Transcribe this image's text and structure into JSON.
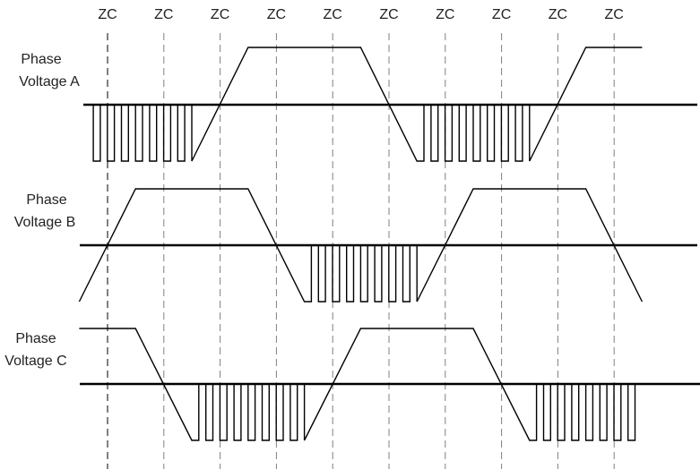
{
  "zc_label": "ZC",
  "zc_count": 10,
  "phases": [
    {
      "id": "a",
      "label_line1": "Phase",
      "label_line2": "Voltage A",
      "sequence": [
        "pwm",
        "rise",
        "high",
        "high",
        "fall",
        "pwm",
        "rise",
        "high"
      ],
      "sequence_spans": [
        2,
        1,
        1,
        1,
        1,
        2,
        1,
        1
      ]
    },
    {
      "id": "b",
      "label_line1": "Phase",
      "label_line2": "Voltage B",
      "sequence": [
        "rise",
        "high",
        "fall",
        "pwm",
        "rise",
        "high",
        "fall"
      ],
      "sequence_spans": [
        1,
        2,
        1,
        2,
        1,
        2,
        1
      ]
    },
    {
      "id": "c",
      "label_line1": "Phase",
      "label_line2": "Voltage C",
      "sequence": [
        "high",
        "fall",
        "pwm",
        "rise",
        "high",
        "fall",
        "pwm"
      ],
      "sequence_spans": [
        1,
        1,
        2,
        1,
        2,
        1,
        2
      ]
    }
  ],
  "colors": {
    "waveform": "#000000",
    "first_zc_line": "#000000",
    "zc_line": "#808080"
  }
}
